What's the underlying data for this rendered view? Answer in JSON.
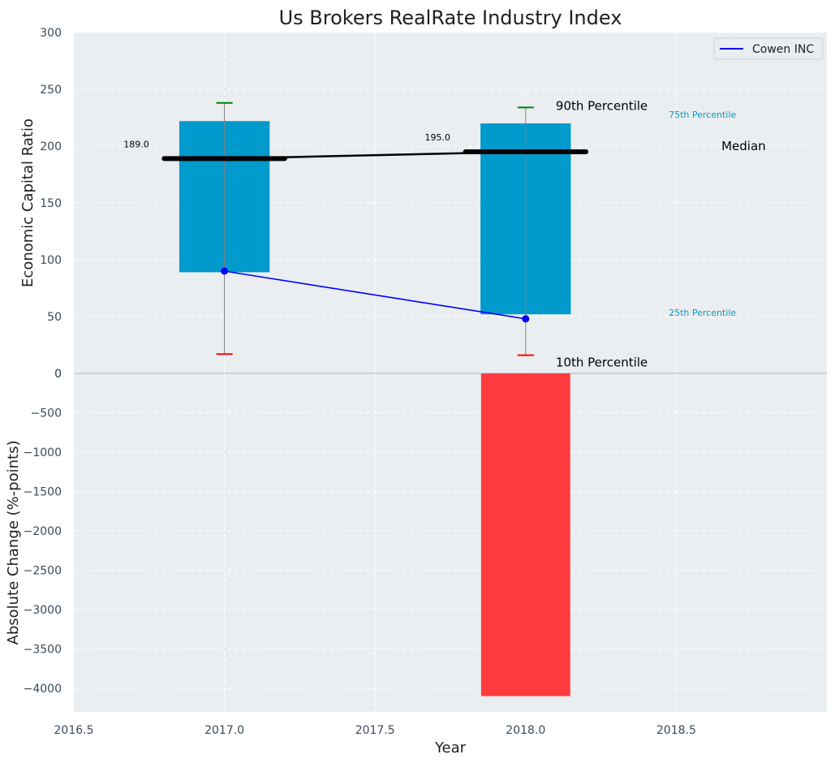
{
  "chart_data": [
    {
      "type": "box",
      "title": "Us Brokers RealRate Industry Index",
      "ylabel": "Economic Capital Ratio",
      "xlim": [
        2016.5,
        2019.0
      ],
      "ylim": [
        0,
        300
      ],
      "yticks": [
        "0",
        "50",
        "100",
        "150",
        "200",
        "250",
        "300"
      ],
      "grid": true,
      "legend": {
        "position": "top-right",
        "entries": [
          "Cowen INC"
        ]
      },
      "boxes": [
        {
          "x": 2017.0,
          "p10": 17,
          "p25": 89,
          "median": 189.0,
          "p75": 222,
          "p90": 238,
          "median_label": "189.0"
        },
        {
          "x": 2018.0,
          "p10": 16,
          "p25": 52,
          "median": 195.0,
          "p75": 220,
          "p90": 234,
          "median_label": "195.0"
        }
      ],
      "median_line": {
        "x": [
          2017.0,
          2018.0
        ],
        "y": [
          189.0,
          195.0
        ]
      },
      "series": [
        {
          "name": "Cowen INC",
          "color": "#0000ff",
          "x": [
            2017.0,
            2018.0
          ],
          "y": [
            90,
            48
          ]
        }
      ],
      "legend_annotations": {
        "p90": "90th Percentile",
        "p75": "75th Percentile",
        "median": "Median",
        "p25": "25th Percentile",
        "p10": "10th Percentile"
      },
      "colors": {
        "box": "#009acd",
        "p90_cap": "#008000",
        "p10_cap": "#ff0000",
        "median": "#000000",
        "whisker": "#808080",
        "p_label": "#009acd"
      }
    },
    {
      "type": "bar",
      "xlabel": "Year",
      "ylabel": "Absolute Change (%-points)",
      "xlim": [
        2016.5,
        2019.0
      ],
      "ylim": [
        -4300,
        0
      ],
      "xticks": [
        "2016.5",
        "2017.0",
        "2017.5",
        "2018.0",
        "2018.5"
      ],
      "yticks": [
        "-4000",
        "-3500",
        "-3000",
        "-2500",
        "-2000",
        "-1500",
        "-1000",
        "-500",
        "0"
      ],
      "grid": true,
      "x": [
        2018.0
      ],
      "values": [
        -4100
      ],
      "colors": {
        "negative": "#ff3b3f"
      }
    }
  ]
}
